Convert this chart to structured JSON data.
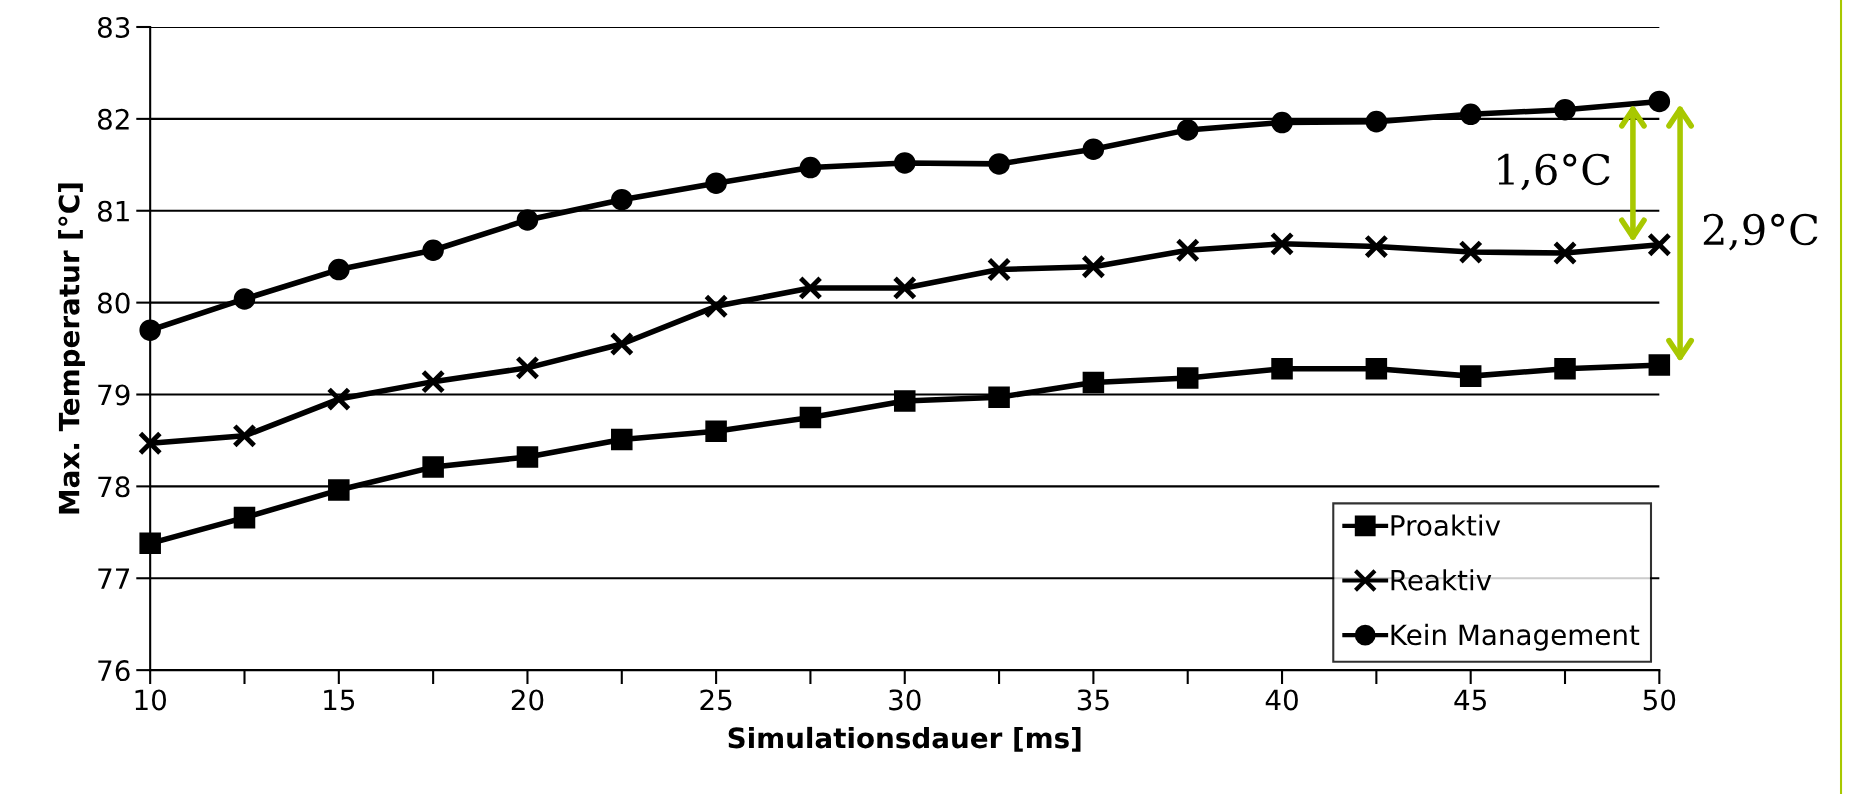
{
  "chart_data": {
    "type": "line",
    "xlabel": "Simulationsdauer [ms]",
    "ylabel": "Max. Temperatur [°C]",
    "x": [
      10,
      12.5,
      15,
      17.5,
      20,
      22.5,
      25,
      27.5,
      30,
      32.5,
      35,
      37.5,
      40,
      42.5,
      45,
      47.5,
      50
    ],
    "series": [
      {
        "name": "Proaktiv",
        "color": "#000000",
        "marker": "square",
        "values": [
          77.38,
          77.66,
          77.96,
          78.21,
          78.32,
          78.51,
          78.6,
          78.75,
          78.93,
          78.97,
          79.13,
          79.18,
          79.28,
          79.28,
          79.2,
          79.28,
          79.32
        ]
      },
      {
        "name": "Reaktiv",
        "color": "#000000",
        "marker": "cross",
        "values": [
          78.47,
          78.55,
          78.95,
          79.14,
          79.29,
          79.55,
          79.96,
          80.16,
          80.16,
          80.36,
          80.39,
          80.57,
          80.64,
          80.61,
          80.55,
          80.54,
          80.63
        ]
      },
      {
        "name": "Kein Management",
        "color": "#000000",
        "marker": "circle",
        "values": [
          79.7,
          80.04,
          80.36,
          80.57,
          80.9,
          81.12,
          81.3,
          81.47,
          81.52,
          81.51,
          81.67,
          81.88,
          81.96,
          81.97,
          82.05,
          82.1,
          82.19
        ]
      }
    ],
    "xlim": [
      10,
      50
    ],
    "ylim": [
      76,
      83
    ],
    "xticks": [
      10,
      {
        "value": 12.5,
        "label": null
      },
      15,
      {
        "value": 17.5,
        "label": null
      },
      20,
      {
        "value": 22.5,
        "label": null
      },
      25,
      {
        "value": 27.5,
        "label": null
      },
      30,
      {
        "value": 32.5,
        "label": null
      },
      35,
      {
        "value": 37.5,
        "label": null
      },
      40,
      {
        "value": 42.5,
        "label": null
      },
      45,
      {
        "value": 47.5,
        "label": null
      },
      50
    ],
    "yticks": [
      76,
      77,
      78,
      79,
      80,
      81,
      82,
      83
    ],
    "grid": "y",
    "legend": "bottom right",
    "line_style": "solid",
    "annotations": [
      "1,6°C",
      "2,9°C"
    ]
  }
}
